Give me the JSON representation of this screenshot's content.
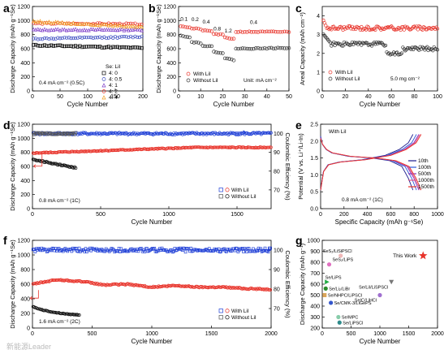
{
  "panel_labels": [
    "a",
    "b",
    "c",
    "d",
    "e",
    "f",
    "g"
  ],
  "watermark": "新能源Leader",
  "chart_data": [
    {
      "id": "a",
      "type": "scatter",
      "xlabel": "Cycle Number",
      "ylabel": "Discharge Capacity (mAh g⁻¹Se)",
      "xlim": [
        0,
        200
      ],
      "ylim": [
        0,
        1200
      ],
      "xticks": [
        0,
        50,
        100,
        150,
        200
      ],
      "yticks": [
        0,
        200,
        400,
        600,
        800,
        1000,
        1200
      ],
      "annotation": "0.4 mA cm⁻² (0.5C)",
      "legend_title": "Se: LiI",
      "series": [
        {
          "name": "4: 0",
          "color": "#000000",
          "marker": "square",
          "start": 650,
          "end": 610
        },
        {
          "name": "4: 0.5",
          "color": "#3b4cc0",
          "marker": "circle",
          "start": 740,
          "end": 770
        },
        {
          "name": "4: 1",
          "color": "#7d3cc8",
          "marker": "triangle",
          "start": 870,
          "end": 870
        },
        {
          "name": "4: 2",
          "color": "#e8332a",
          "marker": "circle",
          "start": 960,
          "end": 950
        },
        {
          "name": "4: 4",
          "color": "#f2a024",
          "marker": "triangle",
          "start": 990,
          "end": 910
        }
      ]
    },
    {
      "id": "b",
      "type": "scatter",
      "xlabel": "Cycle Number",
      "ylabel": "Discharge Capacity (mAh g⁻¹Se)",
      "xlim": [
        0,
        50
      ],
      "ylim": [
        0,
        1200
      ],
      "xticks": [
        0,
        10,
        20,
        30,
        40,
        50
      ],
      "yticks": [
        0,
        200,
        400,
        600,
        800,
        1000,
        1200
      ],
      "rate_labels": [
        {
          "text": "0.1",
          "x": 2.5,
          "y": 1000
        },
        {
          "text": "0.2",
          "x": 7.5,
          "y": 990
        },
        {
          "text": "0.4",
          "x": 12.5,
          "y": 960
        },
        {
          "text": "0.8",
          "x": 17.5,
          "y": 860
        },
        {
          "text": "1.2",
          "x": 22.5,
          "y": 830
        },
        {
          "text": "0.4",
          "x": 34,
          "y": 950
        }
      ],
      "unit_text": "Unit: mA cm⁻²",
      "series": [
        {
          "name": "With LiI",
          "color": "#e8332a",
          "steps": [
            [
              0,
              5,
              930,
              900
            ],
            [
              5,
              10,
              890,
              880
            ],
            [
              10,
              15,
              860,
              850
            ],
            [
              15,
              20,
              810,
              800
            ],
            [
              20,
              25,
              760,
              740
            ],
            [
              25,
              50,
              840,
              840
            ]
          ]
        },
        {
          "name": "Without LiI",
          "color": "#333333",
          "steps": [
            [
              0,
              5,
              800,
              760
            ],
            [
              5,
              10,
              700,
              680
            ],
            [
              10,
              15,
              650,
              630
            ],
            [
              15,
              20,
              560,
              540
            ],
            [
              20,
              25,
              470,
              440
            ],
            [
              25,
              50,
              600,
              610
            ]
          ]
        }
      ]
    },
    {
      "id": "c",
      "type": "scatter",
      "xlabel": "Cycle Number",
      "ylabel": "Areal Capacity (mAh cm⁻²)",
      "xlim": [
        0,
        100
      ],
      "ylim": [
        0,
        4.5
      ],
      "xticks": [
        0,
        20,
        40,
        60,
        80,
        100
      ],
      "yticks": [
        0,
        1,
        2,
        3,
        4
      ],
      "annotation": "5.0 mg cm⁻²",
      "series": [
        {
          "name": "With LiI",
          "color": "#e8332a",
          "start": 3.9,
          "plateau": 3.35,
          "end": 3.3
        },
        {
          "name": "Without LiI",
          "color": "#333333",
          "start": 3.1,
          "plateau": 2.5,
          "dip": 2.0,
          "end": 2.25
        }
      ]
    },
    {
      "id": "d",
      "type": "scatter",
      "xlabel": "Cycle Number",
      "ylabel": "Discharge Capacity (mAh g⁻¹Se)",
      "ylabel2": "Coulombic Efficiency (%)",
      "xlim": [
        0,
        1750
      ],
      "ylim": [
        0,
        1200
      ],
      "xticks": [
        0,
        500,
        1000,
        1500
      ],
      "yticks": [
        0,
        200,
        400,
        600,
        800,
        1000,
        1200
      ],
      "y2lim": [
        60,
        105
      ],
      "y2ticks": [
        70,
        80,
        90,
        100
      ],
      "annotation": "0.8 mA cm⁻² (1C)",
      "series": [
        {
          "name": "With LiI",
          "color": "#e8332a",
          "start": 790,
          "end": 870,
          "xmax": 1750
        },
        {
          "name": "Without LiI",
          "color": "#111111",
          "start": 700,
          "end": 580,
          "xmax": 320
        },
        {
          "name": "With LiI CE",
          "color": "#1f3fd6",
          "ce": 100,
          "xmax": 1750
        },
        {
          "name": "Without LiI CE",
          "color": "#555555",
          "ce": 100,
          "xmax": 320
        }
      ],
      "legend": [
        "With LiI",
        "Without LiI"
      ]
    },
    {
      "id": "e",
      "type": "line",
      "xlabel": "Specific Capacity (mAh g⁻¹Se)",
      "ylabel": "Potential (V vs. Li⁺/Li-In)",
      "xlim": [
        0,
        1000
      ],
      "ylim": [
        0,
        2.5
      ],
      "xticks": [
        0,
        200,
        400,
        600,
        800,
        1000
      ],
      "yticks": [
        0.0,
        0.5,
        1.0,
        1.5,
        2.0,
        2.5
      ],
      "title_text": "With LiI",
      "annotation": "0.8 mA cm⁻² (1C)",
      "series": [
        {
          "name": "10th",
          "color": "#1a1a8c",
          "cap": 790
        },
        {
          "name": "100th",
          "color": "#2b58d9",
          "cap": 820
        },
        {
          "name": "500th",
          "color": "#8b2bb5",
          "cap": 840
        },
        {
          "name": "1000th",
          "color": "#e05a8a",
          "cap": 850
        },
        {
          "name": "1500th",
          "color": "#e8332a",
          "cap": 860
        }
      ]
    },
    {
      "id": "f",
      "type": "scatter",
      "xlabel": "Cycle Number",
      "ylabel": "Discharge Capacity (mAh g⁻¹Se)",
      "ylabel2": "Coulombic Efficiency (%)",
      "xlim": [
        0,
        2000
      ],
      "ylim": [
        0,
        1200
      ],
      "xticks": [
        0,
        500,
        1000,
        1500,
        2000
      ],
      "yticks": [
        0,
        200,
        400,
        600,
        800,
        1000,
        1200
      ],
      "y2lim": [
        60,
        105
      ],
      "y2ticks": [
        70,
        80,
        90,
        100
      ],
      "annotation": "1.6 mA cm⁻² (2C)",
      "series": [
        {
          "name": "With LiI",
          "color": "#e8332a",
          "points": [
            [
              0,
              600
            ],
            [
              200,
              660
            ],
            [
              400,
              640
            ],
            [
              600,
              590
            ],
            [
              800,
              600
            ],
            [
              1000,
              560
            ],
            [
              1200,
              580
            ],
            [
              1400,
              560
            ],
            [
              1600,
              560
            ],
            [
              1800,
              540
            ],
            [
              2000,
              530
            ]
          ]
        },
        {
          "name": "Without LiI",
          "color": "#111111",
          "points": [
            [
              0,
              290
            ],
            [
              100,
              240
            ],
            [
              200,
              210
            ],
            [
              300,
              190
            ],
            [
              400,
              180
            ]
          ]
        },
        {
          "name": "With LiI CE",
          "color": "#1f3fd6",
          "ce": 100,
          "xmax": 2000
        },
        {
          "name": "Without LiI CE",
          "color": "#555555",
          "ce": 100,
          "xmax": 400
        }
      ],
      "legend": [
        "With LiI",
        "Without LiI"
      ]
    },
    {
      "id": "g",
      "type": "scatter",
      "xlabel": "Cycle Number",
      "ylabel": "Discharge Capacity (mAh g⁻¹)",
      "xlim": [
        0,
        2000
      ],
      "ylim": [
        200,
        1000
      ],
      "xticks": [
        0,
        500,
        1000,
        1500,
        2000
      ],
      "yticks": [
        200,
        300,
        400,
        500,
        600,
        700,
        800,
        900,
        1000
      ],
      "points": [
        {
          "label": "This Work",
          "x": 1750,
          "y": 860,
          "color": "#e8332a",
          "marker": "star"
        },
        {
          "label": "SeS₂/LiSiPSCl",
          "x": 320,
          "y": 860,
          "color": "#f0b8b8",
          "marker": "circle"
        },
        {
          "label": "SeS₂/LiPS",
          "x": 120,
          "y": 780,
          "color": "#e070c0",
          "marker": "circle"
        },
        {
          "label": "Se/LiPS",
          "x": 80,
          "y": 620,
          "color": "#22aa44",
          "marker": "triangle"
        },
        {
          "label": "Se/Li₂/LiBr",
          "x": 60,
          "y": 560,
          "color": "#2b8c2b",
          "marker": "circle"
        },
        {
          "label": "Se/LiI/LiSPSCl",
          "x": 1200,
          "y": 620,
          "color": "#777777",
          "marker": "tridown"
        },
        {
          "label": "Se/NHPC/LiPSCl",
          "x": 40,
          "y": 500,
          "color": "#d9a55a",
          "marker": "square"
        },
        {
          "label": "Se/CMK-3/LiGePS",
          "x": 150,
          "y": 430,
          "color": "#3355cc",
          "marker": "circle"
        },
        {
          "label": "Se/C/LiHCl",
          "x": 1000,
          "y": 500,
          "color": "#a070d0",
          "marker": "circle"
        },
        {
          "label": "Se/MPC",
          "x": 280,
          "y": 300,
          "color": "#88ccaa",
          "marker": "circle"
        },
        {
          "label": "Se/LiPSCl",
          "x": 300,
          "y": 250,
          "color": "#2e8b8b",
          "marker": "circle"
        }
      ]
    }
  ]
}
